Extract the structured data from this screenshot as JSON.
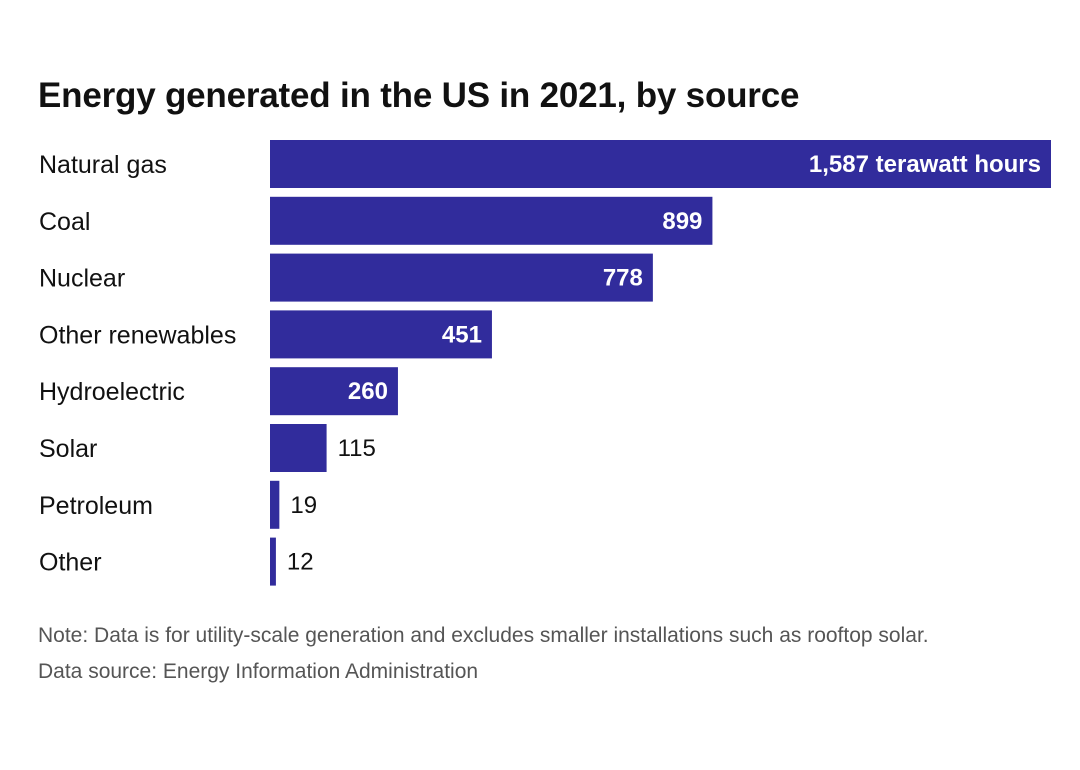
{
  "chart_data": {
    "type": "bar",
    "orientation": "horizontal",
    "title": "Energy generated in the US in 2021, by source",
    "unit": "terawatt hours",
    "categories": [
      "Natural gas",
      "Coal",
      "Nuclear",
      "Other renewables",
      "Hydroelectric",
      "Solar",
      "Petroleum",
      "Other"
    ],
    "values": [
      1587,
      899,
      778,
      451,
      260,
      115,
      19,
      12
    ],
    "value_labels": [
      "1,587 terawatt hours",
      "899",
      "778",
      "451",
      "260",
      "115",
      "19",
      "12"
    ],
    "xlim": [
      0,
      1587
    ],
    "grid": false,
    "legend": "none",
    "bar_color": "#312C9C",
    "label_color_inside": "#ffffff",
    "label_color_outside": "#111111"
  },
  "note": "Note: Data is for utility-scale generation and excludes smaller installations such as rooftop solar.",
  "source": "Data source: Energy Information Administration"
}
